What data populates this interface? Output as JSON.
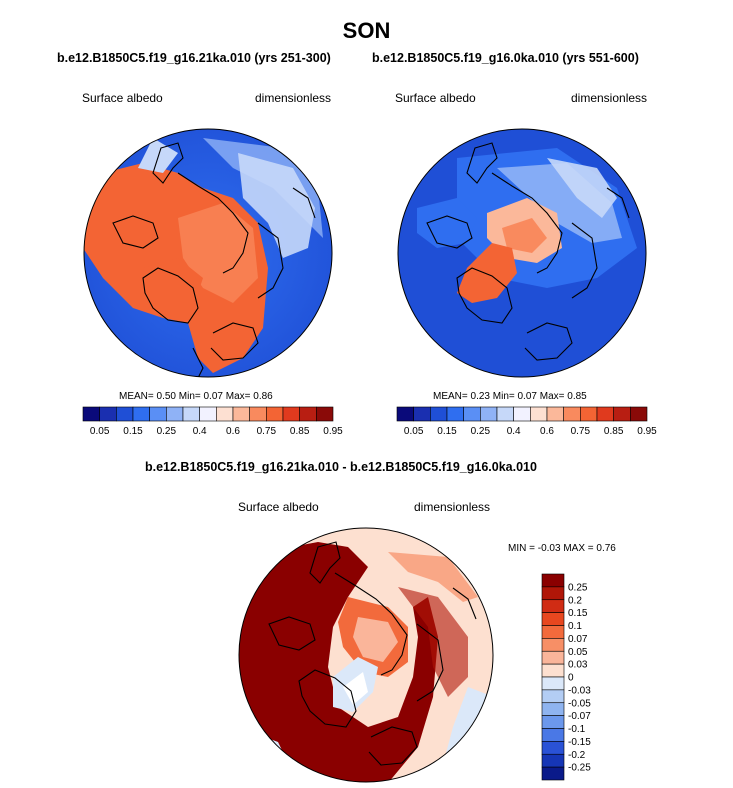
{
  "figure": {
    "season": "SON"
  },
  "panels": {
    "left": {
      "title": "b.e12.B1850C5.f19_g16.21ka.010 (yrs 251-300)",
      "variable": "Surface albedo",
      "units": "dimensionless",
      "stats": {
        "mean_label": "MEAN=",
        "mean": "0.50",
        "min_label": "Min=",
        "min": "0.07",
        "max_label": "Max=",
        "max": "0.86"
      }
    },
    "right": {
      "title": "b.e12.B1850C5.f19_g16.0ka.010 (yrs 551-600)",
      "variable": "Surface albedo",
      "units": "dimensionless",
      "stats": {
        "mean_label": "MEAN=",
        "mean": "0.23",
        "min_label": "Min=",
        "min": "0.07",
        "max_label": "Max=",
        "max": "0.85"
      }
    },
    "diff": {
      "title": "b.e12.B1850C5.f19_g16.21ka.010 - b.e12.B1850C5.f19_g16.0ka.010",
      "variable": "Surface albedo",
      "units": "dimensionless",
      "stats": {
        "min_label": "MIN =",
        "min": "-0.03",
        "max_label": "MAX =",
        "max": "0.76"
      }
    }
  },
  "colorbars": {
    "absolute": {
      "colors": [
        "#0a0a7a",
        "#1a2fb0",
        "#1f4fd6",
        "#2f6ef0",
        "#5a8ff5",
        "#8fb2f6",
        "#c6d8f9",
        "#f2f2ff",
        "#fde0d2",
        "#fbb89a",
        "#f98a5e",
        "#f36434",
        "#e03a1e",
        "#b81e12",
        "#8a0a08"
      ],
      "tick_labels": [
        "0.05",
        "0.15",
        "0.25",
        "0.4",
        "0.6",
        "0.75",
        "0.85",
        "0.95"
      ]
    },
    "difference": {
      "colors": [
        "#8a0000",
        "#b01608",
        "#d02c14",
        "#e8471f",
        "#f26a3c",
        "#f78f66",
        "#fab59a",
        "#fde0d0",
        "#dbe8f9",
        "#b3cdf4",
        "#8fb4f0",
        "#6c98ec",
        "#4a78e6",
        "#2a52d6",
        "#1636b6",
        "#0a1a8a"
      ],
      "tick_labels": [
        "0.25",
        "0.2",
        "0.15",
        "0.1",
        "0.07",
        "0.05",
        "0.03",
        "0",
        "-0.03",
        "-0.05",
        "-0.07",
        "-0.1",
        "-0.15",
        "-0.2",
        "-0.25"
      ]
    }
  }
}
